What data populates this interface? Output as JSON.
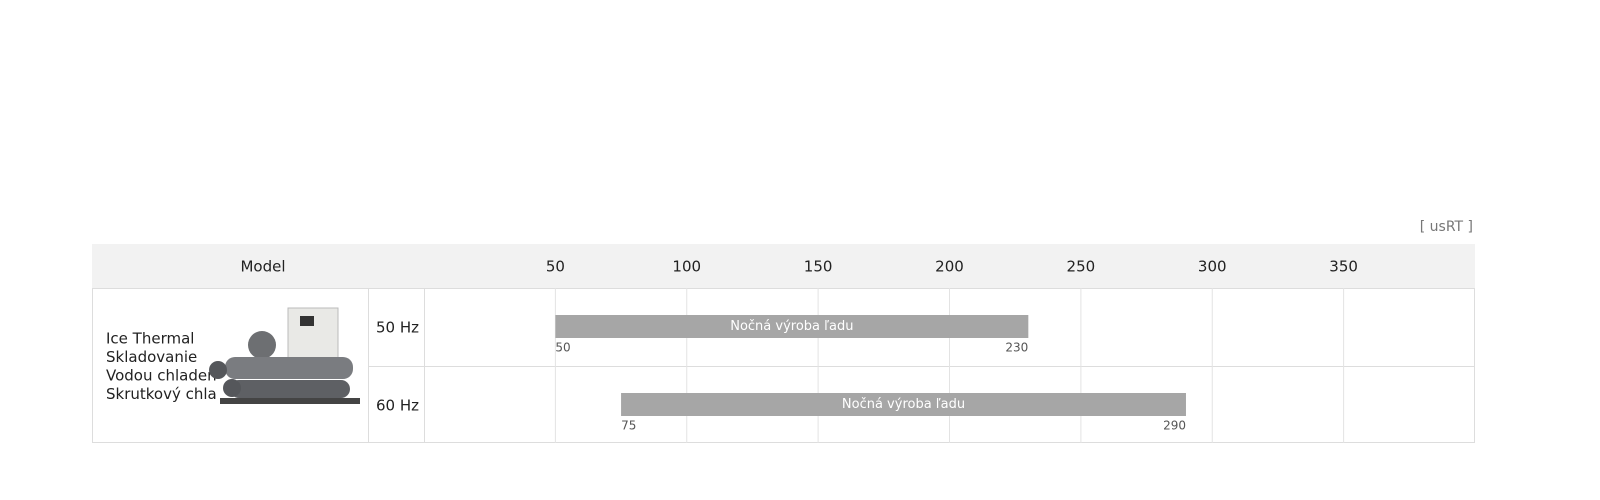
{
  "unit": "[ usRT ]",
  "header": {
    "model": "Model"
  },
  "axis": {
    "xlim": [
      0,
      400
    ],
    "xticks": [
      50,
      100,
      150,
      200,
      250,
      300,
      350
    ]
  },
  "model": {
    "lines": [
      "Ice Thermal",
      "Skladovanie",
      "Vodou chladen",
      "Skrutkový chla"
    ]
  },
  "rows": [
    {
      "frequency": "50 Hz",
      "bar": {
        "label": "Nočná výroba ľadu",
        "min": 50,
        "max": 230,
        "color": "#a6a6a6"
      }
    },
    {
      "frequency": "60 Hz",
      "bar": {
        "label": "Nočná výroba ľadu",
        "min": 75,
        "max": 290,
        "color": "#a6a6a6"
      }
    }
  ]
}
